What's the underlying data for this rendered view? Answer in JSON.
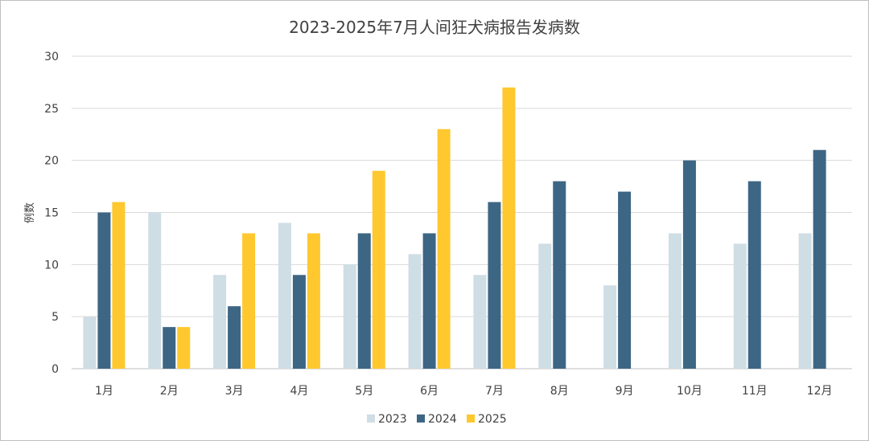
{
  "chart_data": {
    "type": "bar",
    "title": "2023-2025年7月人间狂犬病报告发病数",
    "ylabel": "例数",
    "xlabel": "",
    "categories": [
      "1月",
      "2月",
      "3月",
      "4月",
      "5月",
      "6月",
      "7月",
      "8月",
      "9月",
      "10月",
      "11月",
      "12月"
    ],
    "series": [
      {
        "name": "2023",
        "color": "#cfdde5",
        "values": [
          5,
          15,
          9,
          14,
          10,
          11,
          9,
          12,
          8,
          13,
          12,
          13
        ]
      },
      {
        "name": "2024",
        "color": "#3d6685",
        "values": [
          15,
          4,
          6,
          9,
          13,
          13,
          16,
          18,
          17,
          20,
          18,
          21
        ]
      },
      {
        "name": "2025",
        "color": "#fec82e",
        "values": [
          16,
          4,
          13,
          13,
          19,
          23,
          27,
          null,
          null,
          null,
          null,
          null
        ]
      }
    ],
    "ylim": [
      0,
      30
    ],
    "yticks": [
      "0",
      "5",
      "10",
      "15",
      "20",
      "25",
      "30"
    ],
    "grid": true,
    "legend": "bottom"
  }
}
